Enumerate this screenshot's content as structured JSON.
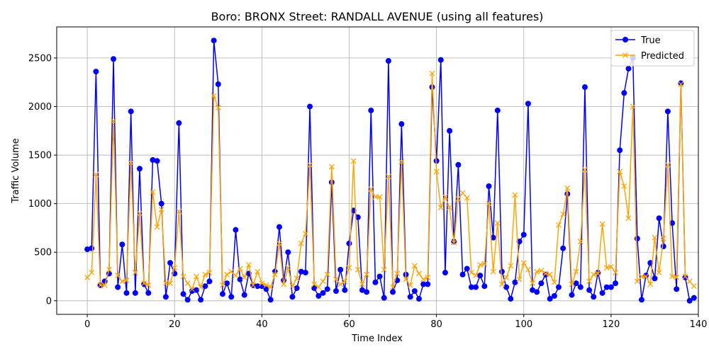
{
  "chart_data": {
    "type": "line",
    "title": "Boro: BRONX Street: RANDALL AVENUE (using all features)",
    "xlabel": "Time Index",
    "ylabel": "Traffic Volume",
    "xlim": [
      -7,
      140
    ],
    "ylim": [
      -140,
      2820
    ],
    "xticks": [
      0,
      20,
      40,
      60,
      80,
      100,
      120,
      140
    ],
    "yticks": [
      0,
      500,
      1000,
      1500,
      2000,
      2500
    ],
    "grid": true,
    "legend_position": "top-right",
    "series": [
      {
        "name": "True",
        "color": "#0000ff",
        "marker": "circle",
        "values": [
          530,
          540,
          2360,
          160,
          200,
          280,
          2490,
          140,
          580,
          80,
          1950,
          80,
          1360,
          170,
          80,
          1450,
          1440,
          1000,
          40,
          390,
          280,
          1830,
          70,
          10,
          100,
          110,
          10,
          150,
          200,
          2680,
          2230,
          70,
          180,
          40,
          730,
          220,
          60,
          280,
          160,
          150,
          150,
          120,
          10,
          300,
          760,
          210,
          500,
          40,
          130,
          300,
          290,
          2000,
          130,
          50,
          80,
          120,
          1220,
          100,
          320,
          110,
          590,
          930,
          860,
          110,
          90,
          1960,
          190,
          250,
          30,
          2470,
          90,
          210,
          1820,
          270,
          40,
          100,
          20,
          170,
          170,
          2200,
          1440,
          2480,
          290,
          1750,
          610,
          1400,
          270,
          330,
          140,
          140,
          260,
          150,
          1180,
          650,
          1960,
          300,
          140,
          20,
          190,
          610,
          680,
          2030,
          110,
          90,
          180,
          270,
          20,
          50,
          140,
          540,
          1100,
          60,
          180,
          140,
          2200,
          110,
          40,
          290,
          80,
          140,
          140,
          180,
          1550,
          2140,
          2390,
          2500,
          640,
          10,
          260,
          390,
          230,
          850,
          560,
          1950,
          800,
          120,
          2240,
          240,
          0,
          30
        ]
      },
      {
        "name": "Predicted",
        "color": "#ffa500",
        "marker": "x",
        "values": [
          240,
          290,
          1300,
          160,
          160,
          320,
          1850,
          260,
          200,
          210,
          1420,
          290,
          900,
          180,
          160,
          1120,
          760,
          940,
          180,
          180,
          340,
          920,
          250,
          180,
          120,
          250,
          140,
          270,
          290,
          2110,
          1990,
          160,
          270,
          300,
          260,
          330,
          240,
          370,
          160,
          300,
          180,
          160,
          140,
          270,
          590,
          170,
          340,
          150,
          230,
          590,
          690,
          1400,
          170,
          140,
          200,
          270,
          1380,
          220,
          170,
          200,
          340,
          1440,
          320,
          170,
          270,
          1150,
          1070,
          1070,
          320,
          1280,
          140,
          280,
          1430,
          220,
          160,
          360,
          280,
          220,
          240,
          2340,
          1330,
          960,
          1070,
          960,
          600,
          1050,
          1110,
          1060,
          290,
          260,
          370,
          380,
          1000,
          300,
          800,
          170,
          240,
          360,
          1090,
          220,
          390,
          320,
          180,
          300,
          310,
          280,
          270,
          190,
          780,
          890,
          1160,
          170,
          300,
          610,
          1350,
          200,
          270,
          280,
          790,
          340,
          350,
          290,
          1330,
          1180,
          850,
          2000,
          200,
          250,
          250,
          170,
          650,
          290,
          640,
          1400,
          250,
          240,
          2230,
          250,
          200,
          150
        ]
      }
    ],
    "legend": [
      "True",
      "Predicted"
    ]
  }
}
